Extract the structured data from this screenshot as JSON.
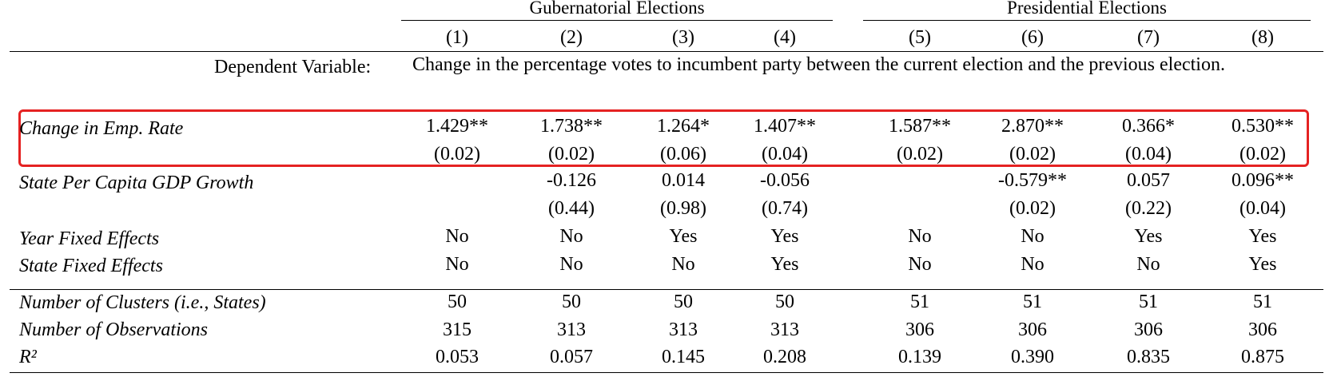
{
  "groups": {
    "gubernatorial": "Gubernatorial Elections",
    "presidential": "Presidential Elections"
  },
  "columns": [
    "(1)",
    "(2)",
    "(3)",
    "(4)",
    "(5)",
    "(6)",
    "(7)",
    "(8)"
  ],
  "dependent_variable": {
    "label": "Dependent Variable:",
    "text": "Change in the percentage votes to incumbent party between the current election and the previous election."
  },
  "rows": {
    "emp_rate": {
      "label": "Change in Emp. Rate",
      "coef": [
        "1.429**",
        "1.738**",
        "1.264*",
        "1.407**",
        "1.587**",
        "2.870**",
        "0.366*",
        "0.530**"
      ],
      "se": [
        "(0.02)",
        "(0.02)",
        "(0.06)",
        "(0.04)",
        "(0.02)",
        "(0.02)",
        "(0.04)",
        "(0.02)"
      ]
    },
    "gdp_growth": {
      "label": "State Per Capita GDP Growth",
      "coef": [
        "",
        "-0.126",
        "0.014",
        "-0.056",
        "",
        "-0.579**",
        "0.057",
        "0.096**"
      ],
      "se": [
        "",
        "(0.44)",
        "(0.98)",
        "(0.74)",
        "",
        "(0.02)",
        "(0.22)",
        "(0.04)"
      ]
    },
    "year_fe": {
      "label": "Year Fixed Effects",
      "values": [
        "No",
        "No",
        "Yes",
        "Yes",
        "No",
        "No",
        "Yes",
        "Yes"
      ]
    },
    "state_fe": {
      "label": "State Fixed Effects",
      "values": [
        "No",
        "No",
        "No",
        "Yes",
        "No",
        "No",
        "No",
        "Yes"
      ]
    },
    "clusters": {
      "label": "Number of Clusters (i.e., States)",
      "values": [
        "50",
        "50",
        "50",
        "50",
        "51",
        "51",
        "51",
        "51"
      ]
    },
    "observations": {
      "label": "Number of Observations",
      "values": [
        "315",
        "313",
        "313",
        "313",
        "306",
        "306",
        "306",
        "306"
      ]
    },
    "r2": {
      "label": "R²",
      "values": [
        "0.053",
        "0.057",
        "0.145",
        "0.208",
        "0.139",
        "0.390",
        "0.835",
        "0.875"
      ]
    }
  },
  "highlight_color": "#e52222"
}
